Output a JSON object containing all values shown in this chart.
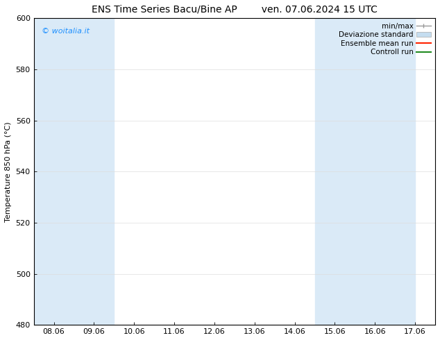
{
  "title_left": "ENS Time Series Bacu/Bine AP",
  "title_right": "ven. 07.06.2024 15 UTC",
  "ylabel": "Temperature 850 hPa (°C)",
  "watermark": "© woitalia.it",
  "watermark_color": "#1e90ff",
  "ylim": [
    480,
    600
  ],
  "yticks": [
    480,
    500,
    520,
    540,
    560,
    580,
    600
  ],
  "xtick_labels": [
    "08.06",
    "09.06",
    "10.06",
    "11.06",
    "12.06",
    "13.06",
    "14.06",
    "15.06",
    "16.06",
    "17.06"
  ],
  "background_color": "#ffffff",
  "plot_bg_color": "#ffffff",
  "shade_color": "#daeaf7",
  "shade_ranges": [
    [
      0.0,
      1.0
    ],
    [
      1.0,
      2.0
    ],
    [
      7.0,
      8.0
    ],
    [
      8.0,
      9.0
    ],
    [
      9.0,
      9.5
    ]
  ],
  "legend_items": [
    {
      "label": "min/max",
      "color": "#aaaaaa",
      "style": "errorbar"
    },
    {
      "label": "Deviazione standard",
      "color": "#c5ddf0",
      "style": "band"
    },
    {
      "label": "Ensemble mean run",
      "color": "#ff0000",
      "style": "line"
    },
    {
      "label": "Controll run",
      "color": "#008000",
      "style": "line"
    }
  ],
  "title_fontsize": 10,
  "axis_fontsize": 8,
  "tick_fontsize": 8,
  "legend_fontsize": 7.5
}
